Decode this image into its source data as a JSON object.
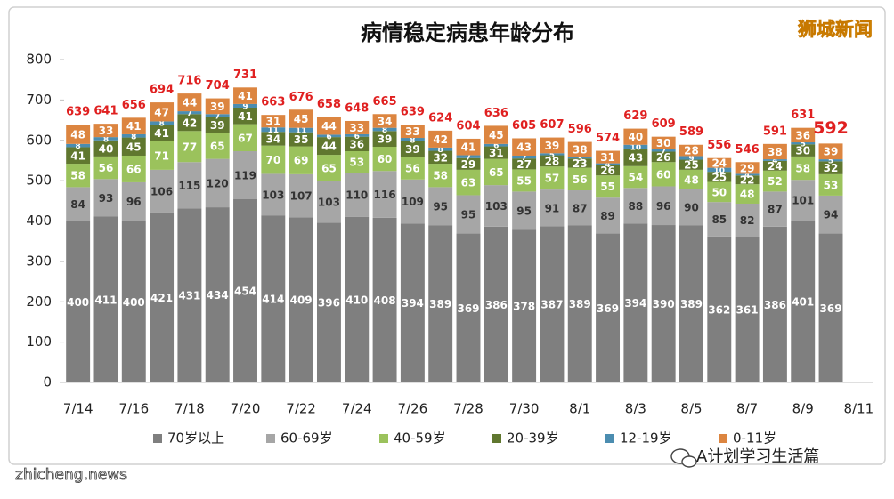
{
  "chart_data": {
    "type": "stacked_bar",
    "title": "病情稳定病患年龄分布",
    "categories": [
      "7/14",
      null,
      "7/16",
      null,
      "7/18",
      null,
      "7/20",
      null,
      "7/22",
      null,
      "7/24",
      null,
      "7/26",
      null,
      "7/28",
      null,
      "7/30",
      null,
      "8/1",
      null,
      "8/3",
      null,
      "8/5",
      null,
      "8/7",
      null,
      "8/9",
      null,
      "8/11"
    ],
    "series": [
      {
        "name": "70岁以上",
        "color": "#7f7f7f",
        "values": [
          400,
          411,
          400,
          421,
          431,
          434,
          454,
          414,
          409,
          396,
          410,
          408,
          394,
          389,
          369,
          386,
          378,
          387,
          389,
          369,
          394,
          390,
          389,
          362,
          361,
          386,
          401,
          369,
          null
        ]
      },
      {
        "name": "60-69岁",
        "color": "#a6a6a6",
        "values": [
          84,
          93,
          96,
          106,
          115,
          120,
          119,
          103,
          107,
          103,
          110,
          116,
          109,
          95,
          95,
          103,
          95,
          91,
          87,
          89,
          88,
          96,
          90,
          85,
          82,
          87,
          101,
          94,
          null
        ]
      },
      {
        "name": "40-59岁",
        "color": "#9bc25c",
        "values": [
          58,
          56,
          66,
          71,
          77,
          65,
          67,
          70,
          69,
          65,
          53,
          60,
          56,
          58,
          63,
          65,
          55,
          57,
          56,
          55,
          54,
          60,
          48,
          50,
          48,
          52,
          58,
          53,
          null
        ]
      },
      {
        "name": "20-39岁",
        "color": "#60772f",
        "values": [
          41,
          40,
          45,
          41,
          42,
          39,
          41,
          34,
          35,
          44,
          36,
          39,
          39,
          32,
          29,
          31,
          27,
          28,
          23,
          26,
          43,
          26,
          25,
          25,
          22,
          24,
          30,
          32,
          null
        ]
      },
      {
        "name": "12-19岁",
        "color": "#4b8db0",
        "values": [
          8,
          8,
          8,
          8,
          7,
          7,
          9,
          11,
          11,
          6,
          6,
          8,
          8,
          8,
          7,
          6,
          7,
          5,
          3,
          4,
          10,
          7,
          9,
          10,
          4,
          4,
          5,
          5,
          null
        ]
      },
      {
        "name": "0-11岁",
        "color": "#dc8540",
        "values": [
          48,
          33,
          41,
          47,
          44,
          39,
          41,
          31,
          45,
          44,
          33,
          34,
          33,
          42,
          41,
          45,
          43,
          39,
          38,
          31,
          40,
          30,
          28,
          24,
          29,
          38,
          36,
          39,
          null
        ]
      }
    ],
    "totals": [
      639,
      641,
      656,
      694,
      716,
      704,
      731,
      663,
      676,
      658,
      648,
      665,
      639,
      624,
      604,
      636,
      605,
      607,
      596,
      574,
      629,
      609,
      589,
      556,
      546,
      591,
      631,
      592,
      null
    ],
    "total_color": "#e02020",
    "ylim": [
      0,
      800
    ],
    "yticks": [
      0,
      100,
      200,
      300,
      400,
      500,
      600,
      700,
      800
    ],
    "legend": "bottom"
  },
  "watermarks": {
    "brand": "狮城新闻",
    "site": "zhicheng.news",
    "account": "A计划学习生活篇"
  }
}
